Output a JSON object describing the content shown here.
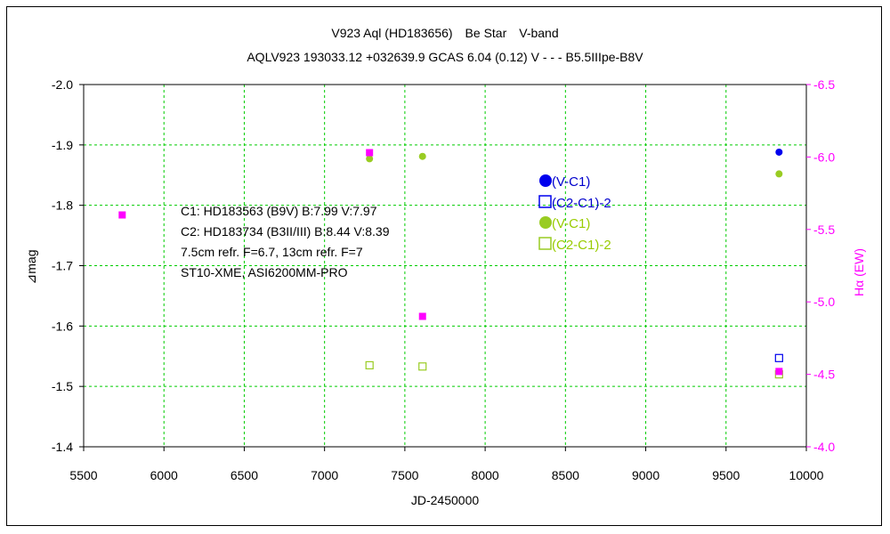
{
  "colors": {
    "blue": "#0000ee",
    "green": "#99cc22",
    "magenta": "#ff00ff",
    "grid": "#00cc00"
  },
  "chart_data": {
    "type": "scatter",
    "title": "V923 Aql (HD183656)　Be Star　V-band",
    "subtitle": "AQLV923 193033.12 +032639.9 GCAS 6.04 (0.12) V - - - B5.5IIIpe-B8V",
    "xlabel": "JD-2450000",
    "ylabel": "⊿mag",
    "y2label": "Hα (EW)",
    "xlim": [
      5500,
      10000
    ],
    "ylim": [
      -2.0,
      -1.4
    ],
    "y2lim": [
      -6.5,
      -4.0
    ],
    "xticks": [
      "5500",
      "6000",
      "6500",
      "7000",
      "7500",
      "8000",
      "8500",
      "9000",
      "9500",
      "10000"
    ],
    "yticks": [
      "-2.0",
      "-1.9",
      "-1.8",
      "-1.7",
      "-1.6",
      "-1.5",
      "-1.4"
    ],
    "y2ticks": [
      "-6.5",
      "-6.0",
      "-5.5",
      "-5.0",
      "-4.5",
      "-4.0"
    ],
    "grid": true,
    "annotations": [
      "C1: HD183563 (B9V) B:7.99 V:7.97",
      "C2: HD183734 (B3II/III) B:8.44 V:8.39",
      "7.5cm refr. F=6.7,  13cm refr. F=7",
      "ST10-XME,  ASI6200MM-PRO"
    ],
    "legend": [
      {
        "label": "(V-C1)",
        "marker": "filled-circle",
        "color": "blue"
      },
      {
        "label": "(C2-C1)-2",
        "marker": "open-square",
        "color": "blue"
      },
      {
        "label": "(V-C1)",
        "marker": "filled-circle",
        "color": "green"
      },
      {
        "label": "(C2-C1)-2",
        "marker": "open-square",
        "color": "green"
      }
    ],
    "series": [
      {
        "name": "(V-C1)",
        "marker": "filled-circle",
        "color": "blue",
        "axis": "left",
        "points": [
          [
            9830,
            -1.888
          ]
        ]
      },
      {
        "name": "(C2-C1)-2",
        "marker": "open-square",
        "color": "blue",
        "axis": "left",
        "points": [
          [
            9830,
            -1.547
          ]
        ]
      },
      {
        "name": "(V-C1)",
        "marker": "filled-circle",
        "color": "green",
        "axis": "left",
        "points": [
          [
            7280,
            -1.877
          ],
          [
            7610,
            -1.881
          ],
          [
            9830,
            -1.852
          ]
        ]
      },
      {
        "name": "(C2-C1)-2",
        "marker": "open-square",
        "color": "green",
        "axis": "left",
        "points": [
          [
            7280,
            -1.535
          ],
          [
            7610,
            -1.533
          ],
          [
            9830,
            -1.52
          ]
        ]
      },
      {
        "marker": "filled-square",
        "color": "magenta",
        "axis": "right",
        "points": [
          [
            5740,
            -5.6
          ],
          [
            7280,
            -6.03
          ],
          [
            7610,
            -4.9
          ],
          [
            9830,
            -4.52
          ]
        ]
      }
    ]
  }
}
